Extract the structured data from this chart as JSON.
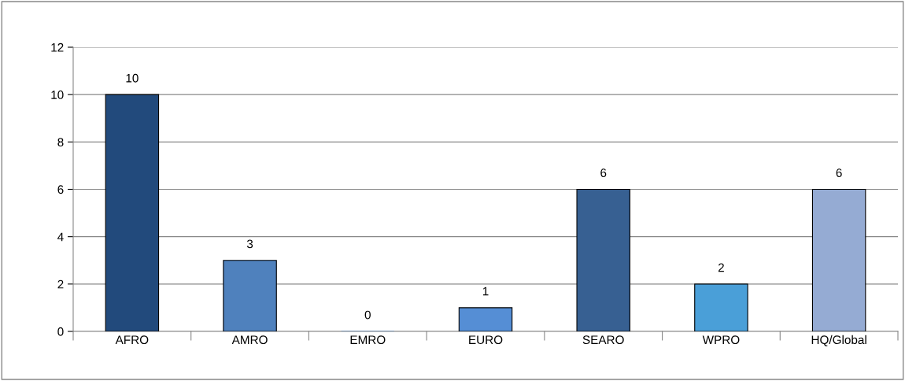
{
  "chart_data": {
    "type": "bar",
    "categories": [
      "AFRO",
      "AMRO",
      "EMRO",
      "EURO",
      "SEARO",
      "WPRO",
      "HQ/Global"
    ],
    "values": [
      10,
      3,
      0,
      1,
      6,
      2,
      6
    ],
    "colors": [
      "#224a7c",
      "#4f81bd",
      "#4f81bd",
      "#558ed5",
      "#376092",
      "#4a9fd8",
      "#95abd3"
    ],
    "ylim": [
      0,
      12
    ],
    "yticks": [
      0,
      2,
      4,
      6,
      8,
      10,
      12
    ],
    "grid": "y",
    "data_labels": true,
    "legend": false
  }
}
